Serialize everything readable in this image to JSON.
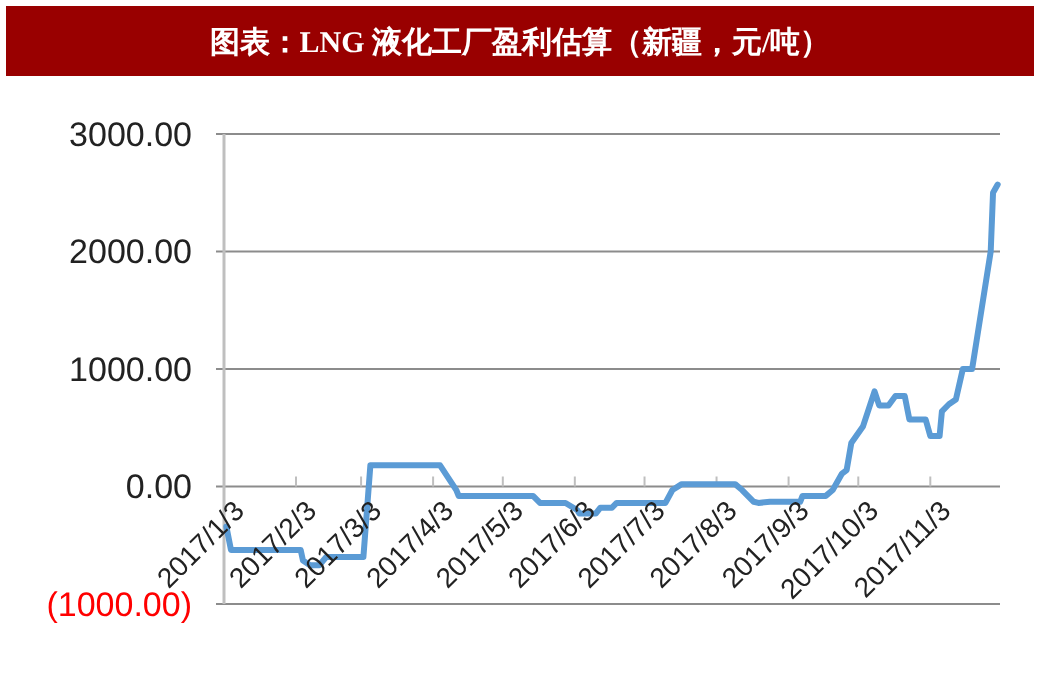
{
  "chart_data": {
    "type": "line",
    "title": "图表：LNG 液化工厂盈利估算（新疆，元/吨）",
    "x": [
      "2017-01-04",
      "2017-01-06",
      "2017-02-05",
      "2017-02-06",
      "2017-02-09",
      "2017-02-13",
      "2017-02-16",
      "2017-03-04",
      "2017-03-07",
      "2017-04-06",
      "2017-04-13",
      "2017-04-14",
      "2017-05-16",
      "2017-05-19",
      "2017-05-30",
      "2017-06-04",
      "2017-06-05",
      "2017-06-12",
      "2017-06-14",
      "2017-06-19",
      "2017-06-21",
      "2017-07-12",
      "2017-07-15",
      "2017-07-19",
      "2017-08-11",
      "2017-08-14",
      "2017-08-19",
      "2017-08-21",
      "2017-08-26",
      "2017-09-08",
      "2017-09-09",
      "2017-09-19",
      "2017-09-22",
      "2017-09-26",
      "2017-09-28",
      "2017-09-30",
      "2017-10-05",
      "2017-10-10",
      "2017-10-12",
      "2017-10-16",
      "2017-10-19",
      "2017-10-23",
      "2017-10-25",
      "2017-11-01",
      "2017-11-03",
      "2017-11-07",
      "2017-11-08",
      "2017-11-11",
      "2017-11-14",
      "2017-11-17",
      "2017-11-21",
      "2017-11-23",
      "2017-11-29",
      "2017-11-30",
      "2017-12-02"
    ],
    "series": [
      {
        "color": "#5b9bd5",
        "values": [
          -340,
          -540,
          -540,
          -630,
          -670,
          -670,
          -600,
          -600,
          180,
          180,
          -30,
          -80,
          -80,
          -140,
          -140,
          -200,
          -230,
          -230,
          -180,
          -180,
          -140,
          -140,
          -30,
          20,
          20,
          -30,
          -130,
          -140,
          -130,
          -130,
          -80,
          -80,
          -30,
          110,
          140,
          370,
          510,
          810,
          690,
          690,
          770,
          770,
          570,
          570,
          430,
          430,
          640,
          700,
          740,
          1000,
          1000,
          1250,
          2000,
          2500,
          2570
        ]
      }
    ],
    "xlim": [
      "2017-01-03",
      "2017-12-03"
    ],
    "xticks": [
      {
        "value": "2017-01-03",
        "label": "2017/1/3"
      },
      {
        "value": "2017-02-03",
        "label": "2017/2/3"
      },
      {
        "value": "2017-03-03",
        "label": "2017/3/3"
      },
      {
        "value": "2017-04-03",
        "label": "2017/4/3"
      },
      {
        "value": "2017-05-03",
        "label": "2017/5/3"
      },
      {
        "value": "2017-06-03",
        "label": "2017/6/3"
      },
      {
        "value": "2017-07-03",
        "label": "2017/7/3"
      },
      {
        "value": "2017-08-03",
        "label": "2017/8/3"
      },
      {
        "value": "2017-09-03",
        "label": "2017/9/3"
      },
      {
        "value": "2017-10-03",
        "label": "2017/10/3"
      },
      {
        "value": "2017-11-03",
        "label": "2017/11/3"
      }
    ],
    "ylim": [
      -1000,
      3000
    ],
    "yticks": [
      {
        "value": -1000,
        "label": "(1000.00)"
      },
      {
        "value": 0,
        "label": "0.00"
      },
      {
        "value": 1000,
        "label": "1000.00"
      },
      {
        "value": 2000,
        "label": "2000.00"
      },
      {
        "value": 3000,
        "label": "3000.00"
      }
    ],
    "grid": "y",
    "marker": "none",
    "line_style": "solid"
  }
}
